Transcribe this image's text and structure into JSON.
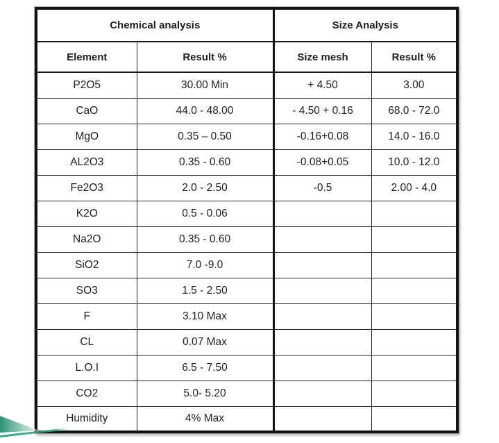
{
  "table": {
    "group_headers": [
      {
        "label": "Chemical analysis",
        "colspan": 2
      },
      {
        "label": "Size Analysis",
        "colspan": 2
      }
    ],
    "column_headers": [
      "Element",
      "Result %",
      "Size mesh",
      "Result %"
    ],
    "rows": [
      [
        "P2O5",
        "30.00 Min",
        "+ 4.50",
        "3.00"
      ],
      [
        "CaO",
        "44.0 - 48.00",
        "- 4.50 + 0.16",
        "68.0 - 72.0"
      ],
      [
        "MgO",
        "0.35 – 0.50",
        "-0.16+0.08",
        "14.0 - 16.0"
      ],
      [
        "AL2O3",
        "0.35 - 0.60",
        "-0.08+0.05",
        "10.0 - 12.0"
      ],
      [
        "Fe2O3",
        "2.0 - 2.50",
        "-0.5",
        "2.00 - 4.0"
      ],
      [
        "K2O",
        "0.5 - 0.06",
        "",
        ""
      ],
      [
        "Na2O",
        "0.35 - 0.60",
        "",
        ""
      ],
      [
        "SiO2",
        "7.0 -9.0",
        "",
        ""
      ],
      [
        "SO3",
        "1.5 - 2.50",
        "",
        ""
      ],
      [
        "F",
        "3.10 Max",
        "",
        ""
      ],
      [
        "CL",
        "0.07 Max",
        "",
        ""
      ],
      [
        "L.O.I",
        "6.5 - 7.50",
        "",
        ""
      ],
      [
        "CO2",
        "5.0- 5.20",
        "",
        ""
      ],
      [
        "Humidity",
        "4% Max",
        "",
        ""
      ]
    ]
  },
  "decoration": {
    "wedge_dark": "#2b9273",
    "wedge_light": "#e2f2ea",
    "line_color": "#35a77c",
    "line_fade": "#ffffff"
  }
}
